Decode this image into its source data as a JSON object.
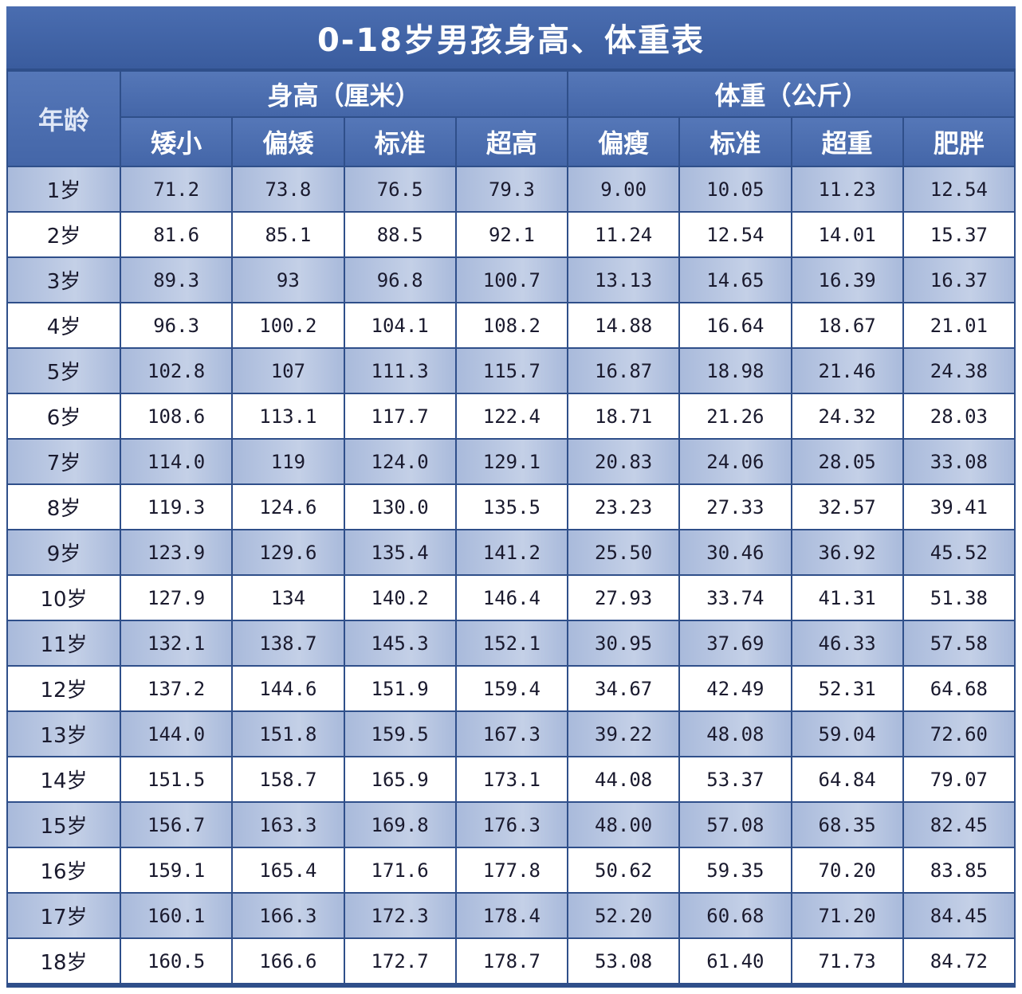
{
  "title": "0-18岁男孩身高、体重表",
  "header": {
    "age": "年龄",
    "height_group": "身高（厘米）",
    "weight_group": "体重（公斤）",
    "height_cols": [
      "矮小",
      "偏矮",
      "标准",
      "超高"
    ],
    "weight_cols": [
      "偏瘦",
      "标准",
      "超重",
      "肥胖"
    ]
  },
  "rows": [
    {
      "age": "1岁",
      "values": [
        "71.2",
        "73.8",
        "76.5",
        "79.3",
        "9.00",
        "10.05",
        "11.23",
        "12.54"
      ]
    },
    {
      "age": "2岁",
      "values": [
        "81.6",
        "85.1",
        "88.5",
        "92.1",
        "11.24",
        "12.54",
        "14.01",
        "15.37"
      ]
    },
    {
      "age": "3岁",
      "values": [
        "89.3",
        "93",
        "96.8",
        "100.7",
        "13.13",
        "14.65",
        "16.39",
        "16.37"
      ]
    },
    {
      "age": "4岁",
      "values": [
        "96.3",
        "100.2",
        "104.1",
        "108.2",
        "14.88",
        "16.64",
        "18.67",
        "21.01"
      ]
    },
    {
      "age": "5岁",
      "values": [
        "102.8",
        "107",
        "111.3",
        "115.7",
        "16.87",
        "18.98",
        "21.46",
        "24.38"
      ]
    },
    {
      "age": "6岁",
      "values": [
        "108.6",
        "113.1",
        "117.7",
        "122.4",
        "18.71",
        "21.26",
        "24.32",
        "28.03"
      ]
    },
    {
      "age": "7岁",
      "values": [
        "114.0",
        "119",
        "124.0",
        "129.1",
        "20.83",
        "24.06",
        "28.05",
        "33.08"
      ]
    },
    {
      "age": "8岁",
      "values": [
        "119.3",
        "124.6",
        "130.0",
        "135.5",
        "23.23",
        "27.33",
        "32.57",
        "39.41"
      ]
    },
    {
      "age": "9岁",
      "values": [
        "123.9",
        "129.6",
        "135.4",
        "141.2",
        "25.50",
        "30.46",
        "36.92",
        "45.52"
      ]
    },
    {
      "age": "10岁",
      "values": [
        "127.9",
        "134",
        "140.2",
        "146.4",
        "27.93",
        "33.74",
        "41.31",
        "51.38"
      ]
    },
    {
      "age": "11岁",
      "values": [
        "132.1",
        "138.7",
        "145.3",
        "152.1",
        "30.95",
        "37.69",
        "46.33",
        "57.58"
      ]
    },
    {
      "age": "12岁",
      "values": [
        "137.2",
        "144.6",
        "151.9",
        "159.4",
        "34.67",
        "42.49",
        "52.31",
        "64.68"
      ]
    },
    {
      "age": "13岁",
      "values": [
        "144.0",
        "151.8",
        "159.5",
        "167.3",
        "39.22",
        "48.08",
        "59.04",
        "72.60"
      ]
    },
    {
      "age": "14岁",
      "values": [
        "151.5",
        "158.7",
        "165.9",
        "173.1",
        "44.08",
        "53.37",
        "64.84",
        "79.07"
      ]
    },
    {
      "age": "15岁",
      "values": [
        "156.7",
        "163.3",
        "169.8",
        "176.3",
        "48.00",
        "57.08",
        "68.35",
        "82.45"
      ]
    },
    {
      "age": "16岁",
      "values": [
        "159.1",
        "165.4",
        "171.6",
        "177.8",
        "50.62",
        "59.35",
        "70.20",
        "83.85"
      ]
    },
    {
      "age": "17岁",
      "values": [
        "160.1",
        "166.3",
        "172.3",
        "178.4",
        "52.20",
        "60.68",
        "71.20",
        "84.45"
      ]
    },
    {
      "age": "18岁",
      "values": [
        "160.5",
        "166.6",
        "172.7",
        "178.7",
        "53.08",
        "61.40",
        "71.73",
        "84.72"
      ]
    }
  ]
}
